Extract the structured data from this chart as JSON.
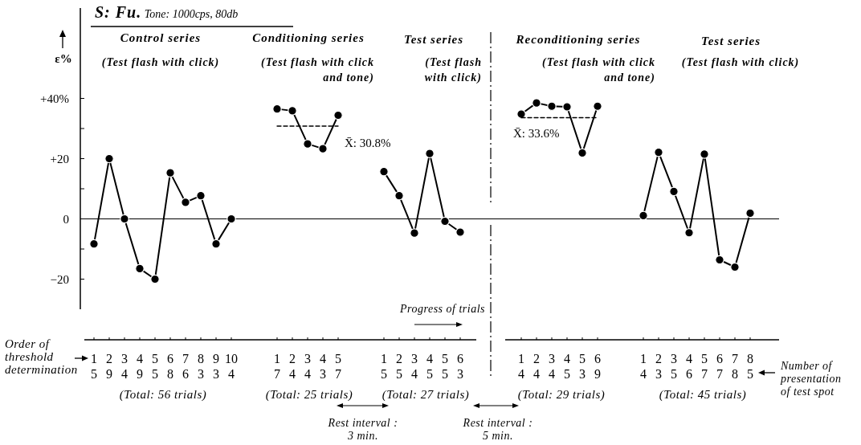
{
  "chart_data": {
    "type": "line",
    "title": "S: Fu. Tone: 1000cps, 80db",
    "ylabel": "ε%",
    "categories": [
      "1\n5",
      "2\n9",
      "3\n4",
      "4\n9",
      "5\n5",
      "6\n8",
      "7\n6",
      "8\n3",
      "9\n3",
      "10\n4",
      null,
      null,
      "1\n7",
      "2\n4",
      "3\n4",
      "4\n3",
      "5\n7",
      null,
      null,
      "1\n5",
      "2\n5",
      "3\n4",
      "4\n5",
      "5\n5",
      "6\n3",
      null,
      null,
      null,
      "1\n4",
      "2\n4",
      "3\n4",
      "4\n5",
      "5\n3",
      "6\n9",
      null,
      null,
      "1\n4",
      "2\n3",
      "3\n5",
      "4\n6",
      "5\n7",
      "6\n7",
      "7\n8",
      "8\n5"
    ],
    "series": [
      {
        "color": "#000000",
        "values": [
          -8.3,
          20,
          0,
          -16.5,
          -20,
          15.3,
          5.5,
          7.7,
          -8.3,
          0,
          null,
          null,
          null,
          null,
          null,
          null,
          null,
          null,
          null,
          null,
          null,
          null,
          null,
          null,
          null,
          null,
          null,
          null,
          null,
          null,
          null,
          null,
          null,
          null,
          null,
          null,
          null,
          null,
          null,
          null,
          null,
          null,
          null,
          null
        ]
      },
      {
        "color": "#000000",
        "values": [
          null,
          null,
          null,
          null,
          null,
          null,
          null,
          null,
          null,
          null,
          null,
          null,
          36.5,
          35.9,
          24.9,
          23.3,
          34.4,
          null,
          null,
          null,
          null,
          null,
          null,
          null,
          null,
          null,
          null,
          null,
          null,
          null,
          null,
          null,
          null,
          null,
          null,
          null,
          null,
          null,
          null,
          null,
          null,
          null,
          null,
          null
        ]
      },
      {
        "name": "X̄: 30.8%",
        "color": "#000000",
        "line_style": "dashed",
        "marker": "none",
        "values": [
          null,
          null,
          null,
          null,
          null,
          null,
          null,
          null,
          null,
          null,
          null,
          null,
          30.8,
          30.8,
          30.8,
          30.8,
          30.8,
          null,
          null,
          null,
          null,
          null,
          null,
          null,
          null,
          null,
          null,
          null,
          null,
          null,
          null,
          null,
          null,
          null,
          null,
          null,
          null,
          null,
          null,
          null,
          null,
          null,
          null,
          null
        ]
      },
      {
        "color": "#000000",
        "values": [
          null,
          null,
          null,
          null,
          null,
          null,
          null,
          null,
          null,
          null,
          null,
          null,
          null,
          null,
          null,
          null,
          null,
          null,
          null,
          15.7,
          7.7,
          -4.7,
          21.7,
          -0.8,
          -4.4,
          null,
          null,
          null,
          null,
          null,
          null,
          null,
          null,
          null,
          null,
          null,
          null,
          null,
          null,
          null,
          null,
          null,
          null,
          null
        ]
      },
      {
        "color": "#000000",
        "values": [
          null,
          null,
          null,
          null,
          null,
          null,
          null,
          null,
          null,
          null,
          null,
          null,
          null,
          null,
          null,
          null,
          null,
          null,
          null,
          null,
          null,
          null,
          null,
          null,
          null,
          null,
          null,
          null,
          34.8,
          38.5,
          37.4,
          37.2,
          21.9,
          37.4,
          null,
          null,
          null,
          null,
          null,
          null,
          null,
          null,
          null,
          null
        ]
      },
      {
        "name": "X̄: 33.6%",
        "color": "#000000",
        "line_style": "dashed",
        "marker": "none",
        "values": [
          null,
          null,
          null,
          null,
          null,
          null,
          null,
          null,
          null,
          null,
          null,
          null,
          null,
          null,
          null,
          null,
          null,
          null,
          null,
          null,
          null,
          null,
          null,
          null,
          null,
          null,
          null,
          null,
          33.6,
          33.6,
          33.6,
          33.6,
          33.6,
          33.6,
          null,
          null,
          null,
          null,
          null,
          null,
          null,
          null,
          null,
          null
        ]
      },
      {
        "color": "#000000",
        "values": [
          null,
          null,
          null,
          null,
          null,
          null,
          null,
          null,
          null,
          null,
          null,
          null,
          null,
          null,
          null,
          null,
          null,
          null,
          null,
          null,
          null,
          null,
          null,
          null,
          null,
          null,
          null,
          null,
          null,
          null,
          null,
          null,
          null,
          null,
          null,
          null,
          1.1,
          22.1,
          9.1,
          -4.6,
          21.5,
          -13.6,
          -16,
          1.9
        ]
      }
    ],
    "ylim": [
      -30,
      70
    ],
    "yticks": [
      {
        "value": 40,
        "label": "+40%"
      },
      {
        "value": 30,
        "label": null
      },
      {
        "value": 20,
        "label": "+20"
      },
      {
        "value": 10,
        "label": null
      },
      0,
      {
        "value": -10,
        "label": null
      },
      {
        "value": -20,
        "label": "−20"
      }
    ],
    "marker": "circle",
    "line_style": "solid",
    "annotations": [
      "Control series",
      "(Test flash with click)",
      "Conditioning series",
      "(Test flash with click\nand tone)",
      "Test series",
      "(Test flash\nwith click)",
      "Reconditioning series",
      "(Test flash with click\nand tone)",
      "Test series",
      "(Test flash with click)",
      "Progress of trials",
      "Order of\nthreshold\ndetermination",
      "Number of\npresentation\nof test spot",
      "(Total: 56 trials)",
      "(Total: 25 trials)",
      "(Total: 27 trials)",
      "(Total: 29 trials)",
      "(Total: 45 trials)",
      "Rest interval :\n3 min.",
      "Rest interval :\n5 min."
    ]
  }
}
